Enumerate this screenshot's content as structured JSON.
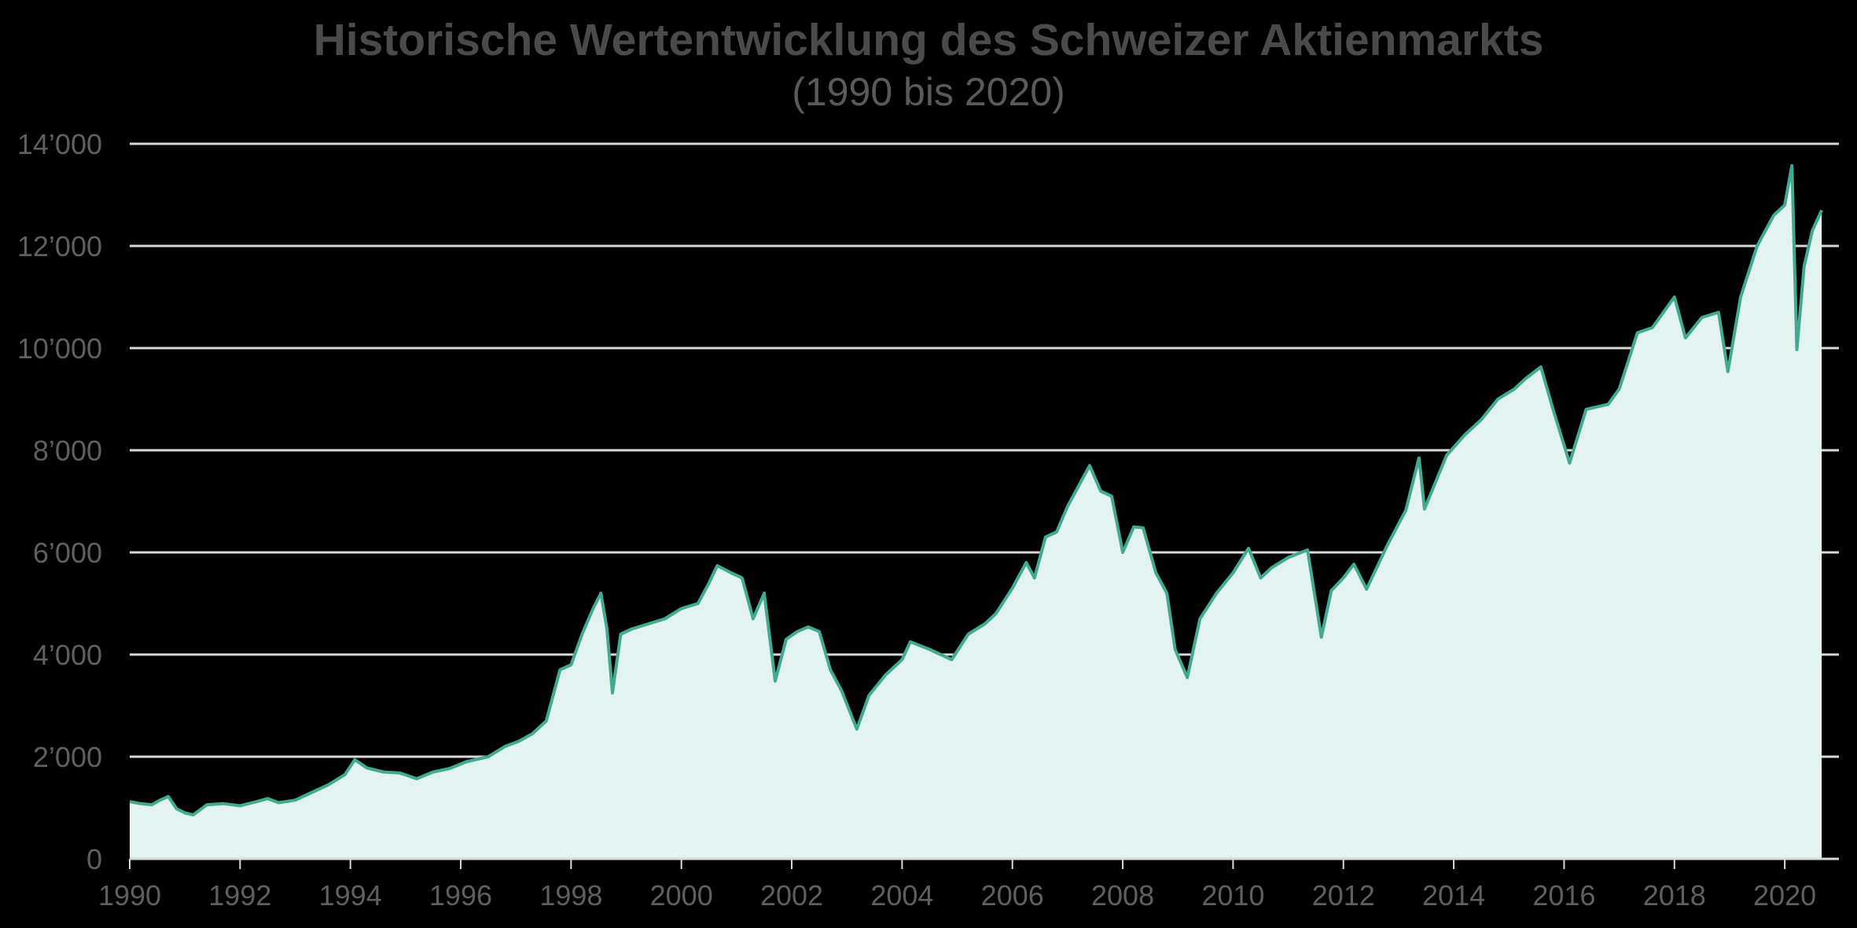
{
  "header": {
    "title": "Historische Wertentwicklung des Schweizer Aktienmarkts",
    "subtitle": "(1990 bis 2020)"
  },
  "colors": {
    "background": "#000000",
    "line": "#41ab92",
    "fill": "#e2f3f0",
    "grid": "#d9d9d9",
    "tick_text": "#5f5f5f",
    "title": "#4a4a4a"
  },
  "chart_data": {
    "type": "area",
    "title": "Historische Wertentwicklung des Schweizer Aktienmarkts",
    "subtitle": "(1990 bis 2020)",
    "xlabel": "",
    "ylabel": "",
    "xlim": [
      1990,
      2020.9
    ],
    "ylim": [
      0,
      14000
    ],
    "grid": "horizontal",
    "legend": "none",
    "x_ticks": [
      "1990",
      "1992",
      "1994",
      "1996",
      "1998",
      "2000",
      "2002",
      "2004",
      "2006",
      "2008",
      "2010",
      "2012",
      "2014",
      "2016",
      "2018",
      "2020"
    ],
    "y_ticks": [
      "0",
      "2’000",
      "4’000",
      "6’000",
      "8’000",
      "10’000",
      "12’000",
      "14’000"
    ],
    "y_tick_values": [
      0,
      2000,
      4000,
      6000,
      8000,
      10000,
      12000,
      14000
    ],
    "series": [
      {
        "name": "Schweizer Aktienmarkt",
        "x": [
          1990.0,
          1990.2,
          1990.4,
          1990.55,
          1990.7,
          1990.85,
          1991.0,
          1991.15,
          1991.4,
          1991.7,
          1992.0,
          1992.3,
          1992.5,
          1992.7,
          1993.0,
          1993.3,
          1993.6,
          1993.9,
          1994.08,
          1994.3,
          1994.6,
          1994.9,
          1995.2,
          1995.5,
          1995.8,
          1996.1,
          1996.5,
          1996.8,
          1997.05,
          1997.3,
          1997.55,
          1997.8,
          1998.0,
          1998.2,
          1998.4,
          1998.54,
          1998.65,
          1998.75,
          1998.9,
          1999.1,
          1999.4,
          1999.7,
          2000.0,
          2000.3,
          2000.5,
          2000.65,
          2000.9,
          2001.1,
          2001.3,
          2001.5,
          2001.7,
          2001.9,
          2002.1,
          2002.3,
          2002.5,
          2002.7,
          2002.9,
          2003.18,
          2003.4,
          2003.7,
          2004.0,
          2004.15,
          2004.5,
          2004.9,
          2005.2,
          2005.5,
          2005.7,
          2006.0,
          2006.25,
          2006.4,
          2006.6,
          2006.8,
          2007.0,
          2007.2,
          2007.4,
          2007.6,
          2007.8,
          2008.0,
          2008.2,
          2008.37,
          2008.6,
          2008.8,
          2008.95,
          2009.17,
          2009.4,
          2009.7,
          2010.0,
          2010.28,
          2010.5,
          2010.7,
          2011.0,
          2011.35,
          2011.6,
          2011.78,
          2012.0,
          2012.19,
          2012.42,
          2012.8,
          2013.13,
          2013.37,
          2013.47,
          2013.87,
          2014.2,
          2014.5,
          2014.8,
          2015.1,
          2015.3,
          2015.58,
          2015.8,
          2016.1,
          2016.4,
          2016.8,
          2017.0,
          2017.33,
          2017.6,
          2018.0,
          2018.2,
          2018.5,
          2018.8,
          2018.97,
          2019.2,
          2019.5,
          2019.8,
          2020.0,
          2020.13,
          2020.22,
          2020.35,
          2020.5,
          2020.67
        ],
        "values": [
          1120,
          1080,
          1060,
          1150,
          1220,
          980,
          900,
          860,
          1060,
          1080,
          1040,
          1120,
          1180,
          1100,
          1150,
          1300,
          1450,
          1650,
          1940,
          1780,
          1700,
          1680,
          1570,
          1700,
          1770,
          1900,
          2000,
          2200,
          2300,
          2450,
          2700,
          3700,
          3800,
          4400,
          4900,
          5200,
          4500,
          3250,
          4400,
          4500,
          4600,
          4700,
          4900,
          5000,
          5400,
          5740,
          5600,
          5500,
          4700,
          5200,
          3480,
          4300,
          4450,
          4540,
          4450,
          3700,
          3300,
          2540,
          3200,
          3600,
          3900,
          4250,
          4100,
          3900,
          4400,
          4600,
          4800,
          5300,
          5800,
          5500,
          6300,
          6400,
          6900,
          7300,
          7700,
          7200,
          7100,
          6000,
          6500,
          6480,
          5600,
          5200,
          4100,
          3550,
          4700,
          5200,
          5600,
          6080,
          5500,
          5700,
          5900,
          6050,
          4340,
          5250,
          5500,
          5770,
          5280,
          6150,
          6820,
          7850,
          6850,
          7900,
          8300,
          8600,
          9000,
          9200,
          9400,
          9630,
          8800,
          7750,
          8800,
          8900,
          9200,
          10300,
          10400,
          11000,
          10200,
          10600,
          10700,
          9540,
          11000,
          12000,
          12600,
          12800,
          13570,
          9970,
          11600,
          12300,
          12700
        ]
      }
    ]
  }
}
